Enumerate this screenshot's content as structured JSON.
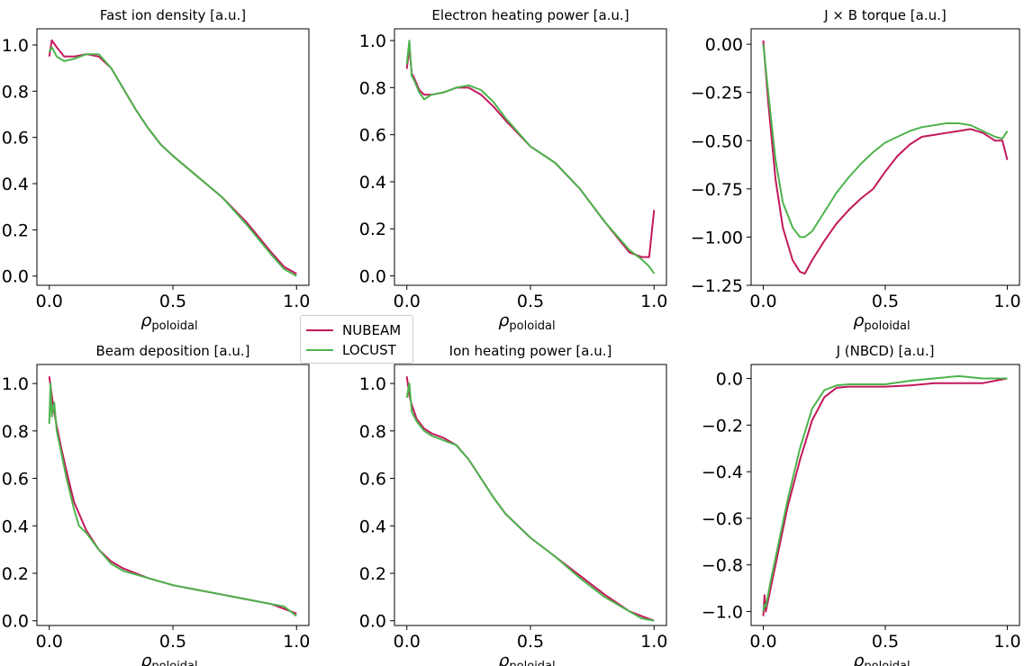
{
  "legend": {
    "items": [
      {
        "label": "NUBEAM",
        "color": "#c2185b"
      },
      {
        "label": "LOCUST",
        "color": "#4db34d"
      }
    ],
    "placement": "center"
  },
  "chart_data": [
    {
      "type": "line",
      "title": "Fast ion density [a.u.]",
      "xlabel": "ρpoloidal",
      "xlim": [
        -0.05,
        1.05
      ],
      "ylim": [
        -0.04,
        1.07
      ],
      "xticks": [
        "0.0",
        "0.5",
        "1.0"
      ],
      "yticks": [
        "0.0",
        "0.2",
        "0.4",
        "0.6",
        "0.8",
        "1.0"
      ],
      "series": [
        {
          "name": "NUBEAM",
          "color": "#c2185b",
          "x": [
            0.0,
            0.01,
            0.03,
            0.06,
            0.1,
            0.15,
            0.2,
            0.25,
            0.3,
            0.35,
            0.4,
            0.45,
            0.5,
            0.6,
            0.7,
            0.8,
            0.9,
            0.95,
            1.0
          ],
          "y": [
            0.95,
            1.02,
            0.99,
            0.95,
            0.95,
            0.96,
            0.95,
            0.9,
            0.81,
            0.72,
            0.64,
            0.57,
            0.52,
            0.43,
            0.34,
            0.23,
            0.1,
            0.04,
            0.01
          ]
        },
        {
          "name": "LOCUST",
          "color": "#4db34d",
          "x": [
            0.0,
            0.01,
            0.03,
            0.06,
            0.1,
            0.15,
            0.2,
            0.25,
            0.3,
            0.35,
            0.4,
            0.45,
            0.5,
            0.6,
            0.7,
            0.8,
            0.9,
            0.95,
            1.0
          ],
          "y": [
            0.97,
            0.99,
            0.95,
            0.93,
            0.94,
            0.96,
            0.96,
            0.9,
            0.81,
            0.72,
            0.64,
            0.57,
            0.52,
            0.43,
            0.34,
            0.22,
            0.09,
            0.03,
            0.0
          ]
        }
      ]
    },
    {
      "type": "line",
      "title": "Electron heating power [a.u.]",
      "xlabel": "ρpoloidal",
      "xlim": [
        -0.05,
        1.05
      ],
      "ylim": [
        -0.04,
        1.05
      ],
      "xticks": [
        "0.0",
        "0.5",
        "1.0"
      ],
      "yticks": [
        "0.0",
        "0.2",
        "0.4",
        "0.6",
        "0.8",
        "1.0"
      ],
      "series": [
        {
          "name": "NUBEAM",
          "color": "#c2185b",
          "x": [
            0.0,
            0.01,
            0.02,
            0.03,
            0.05,
            0.07,
            0.1,
            0.15,
            0.2,
            0.25,
            0.3,
            0.35,
            0.4,
            0.5,
            0.6,
            0.7,
            0.8,
            0.9,
            0.95,
            0.98,
            1.0
          ],
          "y": [
            0.88,
            0.97,
            0.86,
            0.84,
            0.79,
            0.77,
            0.77,
            0.78,
            0.8,
            0.8,
            0.77,
            0.72,
            0.66,
            0.55,
            0.48,
            0.37,
            0.23,
            0.1,
            0.08,
            0.08,
            0.28
          ]
        },
        {
          "name": "LOCUST",
          "color": "#4db34d",
          "x": [
            0.0,
            0.01,
            0.02,
            0.03,
            0.05,
            0.07,
            0.1,
            0.15,
            0.2,
            0.25,
            0.3,
            0.35,
            0.4,
            0.5,
            0.6,
            0.7,
            0.8,
            0.9,
            0.95,
            0.98,
            1.0
          ],
          "y": [
            0.9,
            1.0,
            0.85,
            0.83,
            0.78,
            0.75,
            0.77,
            0.78,
            0.8,
            0.81,
            0.79,
            0.74,
            0.67,
            0.55,
            0.48,
            0.37,
            0.23,
            0.11,
            0.07,
            0.04,
            0.01
          ]
        }
      ]
    },
    {
      "type": "line",
      "title": "J × B torque [a.u.]",
      "xlabel": "ρpoloidal",
      "xlim": [
        -0.05,
        1.05
      ],
      "ylim": [
        -1.25,
        0.08
      ],
      "xticks": [
        "0.0",
        "0.5",
        "1.0"
      ],
      "yticks": [
        "0.00",
        "−0.25",
        "−0.50",
        "−0.75",
        "−1.00",
        "−1.25"
      ],
      "series": [
        {
          "name": "NUBEAM",
          "color": "#c2185b",
          "x": [
            0.0,
            0.02,
            0.05,
            0.08,
            0.12,
            0.15,
            0.17,
            0.2,
            0.25,
            0.3,
            0.35,
            0.4,
            0.45,
            0.5,
            0.55,
            0.6,
            0.65,
            0.7,
            0.75,
            0.8,
            0.85,
            0.9,
            0.95,
            0.98,
            1.0
          ],
          "y": [
            0.02,
            -0.3,
            -0.7,
            -0.95,
            -1.12,
            -1.18,
            -1.19,
            -1.12,
            -1.02,
            -0.93,
            -0.86,
            -0.8,
            -0.75,
            -0.66,
            -0.58,
            -0.52,
            -0.48,
            -0.47,
            -0.46,
            -0.45,
            -0.44,
            -0.46,
            -0.5,
            -0.5,
            -0.6
          ]
        },
        {
          "name": "LOCUST",
          "color": "#4db34d",
          "x": [
            0.0,
            0.02,
            0.05,
            0.08,
            0.12,
            0.15,
            0.17,
            0.2,
            0.25,
            0.3,
            0.35,
            0.4,
            0.45,
            0.5,
            0.55,
            0.6,
            0.65,
            0.7,
            0.75,
            0.8,
            0.85,
            0.9,
            0.95,
            0.98,
            1.0
          ],
          "y": [
            0.0,
            -0.25,
            -0.6,
            -0.82,
            -0.95,
            -1.0,
            -1.0,
            -0.97,
            -0.87,
            -0.77,
            -0.69,
            -0.62,
            -0.56,
            -0.51,
            -0.48,
            -0.45,
            -0.43,
            -0.42,
            -0.41,
            -0.41,
            -0.42,
            -0.45,
            -0.48,
            -0.49,
            -0.45
          ]
        }
      ]
    },
    {
      "type": "line",
      "title": "Beam deposition [a.u.]",
      "xlabel": "ρpoloidal",
      "xlim": [
        -0.05,
        1.05
      ],
      "ylim": [
        -0.02,
        1.08
      ],
      "xticks": [
        "0.0",
        "0.5",
        "1.0"
      ],
      "yticks": [
        "0.0",
        "0.2",
        "0.4",
        "0.6",
        "0.8",
        "1.0"
      ],
      "series": [
        {
          "name": "NUBEAM",
          "color": "#c2185b",
          "x": [
            0.0,
            0.01,
            0.02,
            0.03,
            0.05,
            0.07,
            0.1,
            0.15,
            0.2,
            0.25,
            0.3,
            0.4,
            0.5,
            0.6,
            0.7,
            0.8,
            0.9,
            1.0
          ],
          "y": [
            1.03,
            0.95,
            0.88,
            0.82,
            0.72,
            0.63,
            0.5,
            0.38,
            0.3,
            0.25,
            0.22,
            0.18,
            0.15,
            0.13,
            0.11,
            0.09,
            0.07,
            0.03
          ]
        },
        {
          "name": "LOCUST",
          "color": "#4db34d",
          "x": [
            0.0,
            0.005,
            0.01,
            0.02,
            0.03,
            0.05,
            0.07,
            0.1,
            0.12,
            0.15,
            0.2,
            0.25,
            0.3,
            0.4,
            0.5,
            0.6,
            0.7,
            0.8,
            0.9,
            0.95,
            1.0
          ],
          "y": [
            0.83,
            1.0,
            0.86,
            0.92,
            0.8,
            0.7,
            0.6,
            0.47,
            0.4,
            0.37,
            0.3,
            0.24,
            0.21,
            0.18,
            0.15,
            0.13,
            0.11,
            0.09,
            0.07,
            0.06,
            0.02
          ]
        }
      ]
    },
    {
      "type": "line",
      "title": "Ion heating power [a.u.]",
      "xlabel": "ρpoloidal",
      "xlim": [
        -0.05,
        1.05
      ],
      "ylim": [
        -0.02,
        1.08
      ],
      "xticks": [
        "0.0",
        "0.5",
        "1.0"
      ],
      "yticks": [
        "0.0",
        "0.2",
        "0.4",
        "0.6",
        "0.8",
        "1.0"
      ],
      "series": [
        {
          "name": "NUBEAM",
          "color": "#c2185b",
          "x": [
            0.0,
            0.01,
            0.02,
            0.04,
            0.07,
            0.1,
            0.15,
            0.2,
            0.25,
            0.3,
            0.35,
            0.4,
            0.5,
            0.6,
            0.7,
            0.8,
            0.9,
            0.95,
            1.0
          ],
          "y": [
            1.03,
            0.95,
            0.91,
            0.85,
            0.81,
            0.79,
            0.77,
            0.74,
            0.68,
            0.6,
            0.52,
            0.45,
            0.35,
            0.27,
            0.19,
            0.11,
            0.04,
            0.02,
            0.0
          ]
        },
        {
          "name": "LOCUST",
          "color": "#4db34d",
          "x": [
            0.0,
            0.01,
            0.02,
            0.04,
            0.07,
            0.1,
            0.15,
            0.2,
            0.25,
            0.3,
            0.35,
            0.4,
            0.5,
            0.6,
            0.7,
            0.8,
            0.9,
            0.95,
            1.0
          ],
          "y": [
            0.94,
            1.0,
            0.88,
            0.84,
            0.8,
            0.78,
            0.76,
            0.74,
            0.68,
            0.6,
            0.52,
            0.45,
            0.35,
            0.27,
            0.18,
            0.1,
            0.04,
            0.01,
            0.0
          ]
        }
      ]
    },
    {
      "type": "line",
      "title": "J (NBCD) [a.u.]",
      "xlabel": "ρpoloidal",
      "xlim": [
        -0.05,
        1.05
      ],
      "ylim": [
        -1.06,
        0.06
      ],
      "xticks": [
        "0.0",
        "0.5",
        "1.0"
      ],
      "yticks": [
        "0.0",
        "−0.2",
        "−0.4",
        "−0.6",
        "−0.8",
        "−1.0"
      ],
      "series": [
        {
          "name": "NUBEAM",
          "color": "#c2185b",
          "x": [
            0.0,
            0.005,
            0.01,
            0.03,
            0.05,
            0.08,
            0.1,
            0.15,
            0.2,
            0.25,
            0.3,
            0.35,
            0.4,
            0.5,
            0.6,
            0.7,
            0.8,
            0.9,
            1.0
          ],
          "y": [
            -1.02,
            -0.93,
            -1.0,
            -0.9,
            -0.8,
            -0.65,
            -0.55,
            -0.35,
            -0.18,
            -0.08,
            -0.04,
            -0.035,
            -0.035,
            -0.035,
            -0.03,
            -0.02,
            -0.02,
            -0.02,
            0.0
          ]
        },
        {
          "name": "LOCUST",
          "color": "#4db34d",
          "x": [
            0.0,
            0.005,
            0.01,
            0.03,
            0.05,
            0.08,
            0.1,
            0.15,
            0.2,
            0.25,
            0.3,
            0.35,
            0.4,
            0.5,
            0.6,
            0.7,
            0.8,
            0.9,
            1.0
          ],
          "y": [
            -1.0,
            -0.97,
            -0.98,
            -0.87,
            -0.77,
            -0.62,
            -0.52,
            -0.3,
            -0.13,
            -0.05,
            -0.03,
            -0.025,
            -0.025,
            -0.025,
            -0.01,
            0.0,
            0.01,
            0.0,
            0.0
          ]
        }
      ]
    }
  ]
}
